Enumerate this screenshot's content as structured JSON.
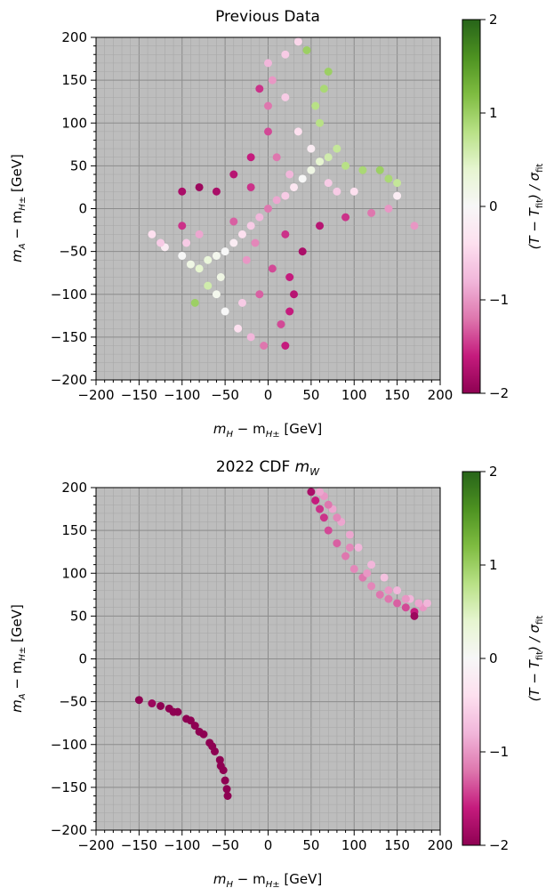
{
  "colors": {
    "plot_background": "#bdbdbd",
    "grid_major": "#8c8c8c",
    "grid_minor": "#a8a8a8",
    "cmap_stops": [
      "#8e0152",
      "#c51b7d",
      "#de77ae",
      "#f1b6da",
      "#fde0ef",
      "#f7f7f7",
      "#e6f5d0",
      "#b8e186",
      "#7fbc41",
      "#4d9221",
      "#276419"
    ]
  },
  "colorbar": {
    "label_main": "(T − T",
    "label_sub": "fit",
    "label_tail": ") / σ",
    "label_sub2": "fit",
    "range": [
      -2,
      2
    ],
    "ticks": [
      -2,
      -1,
      0,
      1,
      2
    ],
    "tick_labels": [
      "−2",
      "−1",
      "0",
      "1",
      "2"
    ]
  },
  "chart_data": [
    {
      "type": "scatter",
      "title": "Previous Data",
      "title_parts": {
        "main": "Previous Data",
        "italic": "",
        "sub": ""
      },
      "xlabel": {
        "main": "m",
        "sub1": "H",
        "mid": " − m",
        "sub2": "H±",
        "tail": " [GeV]"
      },
      "ylabel": {
        "main": "m",
        "sub1": "A",
        "mid": " − m",
        "sub2": "H±",
        "tail": " [GeV]"
      },
      "xlim": [
        -200,
        200
      ],
      "ylim": [
        -200,
        200
      ],
      "xticks": [
        -200,
        -150,
        -100,
        -50,
        0,
        50,
        100,
        150,
        200
      ],
      "yticks": [
        -200,
        -150,
        -100,
        -50,
        0,
        50,
        100,
        150,
        200
      ],
      "xtick_labels": [
        "−200",
        "−150",
        "−100",
        "−50",
        "0",
        "50",
        "100",
        "150",
        "200"
      ],
      "ytick_labels": [
        "−200",
        "−150",
        "−100",
        "−50",
        "0",
        "50",
        "100",
        "150",
        "200"
      ],
      "grid": true,
      "colorbar_quantity": "(T − T_fit) / σ_fit",
      "description_shape": "cross/star region centered near origin",
      "points": [
        [
          0,
          0,
          -1.2
        ],
        [
          10,
          10,
          -0.9
        ],
        [
          20,
          15,
          -0.6
        ],
        [
          30,
          25,
          -0.3
        ],
        [
          40,
          35,
          0.0
        ],
        [
          50,
          45,
          0.2
        ],
        [
          60,
          55,
          0.4
        ],
        [
          70,
          60,
          0.6
        ],
        [
          80,
          70,
          0.7
        ],
        [
          60,
          100,
          0.8
        ],
        [
          55,
          120,
          0.8
        ],
        [
          65,
          140,
          0.9
        ],
        [
          70,
          160,
          1.0
        ],
        [
          45,
          185,
          1.0
        ],
        [
          90,
          50,
          0.8
        ],
        [
          110,
          45,
          0.9
        ],
        [
          130,
          45,
          1.0
        ],
        [
          140,
          35,
          0.9
        ],
        [
          150,
          30,
          0.7
        ],
        [
          -10,
          -10,
          -0.8
        ],
        [
          -20,
          -20,
          -0.6
        ],
        [
          -30,
          -30,
          -0.4
        ],
        [
          -40,
          -40,
          -0.2
        ],
        [
          -50,
          -50,
          0.0
        ],
        [
          -60,
          -55,
          0.1
        ],
        [
          -70,
          -60,
          0.3
        ],
        [
          -80,
          -70,
          0.4
        ],
        [
          -90,
          -65,
          0.2
        ],
        [
          -100,
          -55,
          0.0
        ],
        [
          -120,
          -45,
          -0.2
        ],
        [
          -135,
          -30,
          -0.4
        ],
        [
          -55,
          -80,
          0.2
        ],
        [
          -60,
          -100,
          0.1
        ],
        [
          -50,
          -120,
          0.0
        ],
        [
          -35,
          -140,
          -0.4
        ],
        [
          -20,
          -150,
          -0.8
        ],
        [
          -5,
          -160,
          -1.2
        ],
        [
          15,
          -135,
          -1.4
        ],
        [
          25,
          -120,
          -1.6
        ],
        [
          30,
          -100,
          -1.7
        ],
        [
          25,
          -80,
          -1.6
        ],
        [
          40,
          -50,
          -1.8
        ],
        [
          60,
          -20,
          -1.7
        ],
        [
          90,
          -10,
          -1.5
        ],
        [
          120,
          -5,
          -1.2
        ],
        [
          140,
          0,
          -1.0
        ],
        [
          -100,
          20,
          -1.8
        ],
        [
          -80,
          25,
          -1.9
        ],
        [
          -60,
          20,
          -1.8
        ],
        [
          -40,
          40,
          -1.7
        ],
        [
          -20,
          60,
          -1.6
        ],
        [
          0,
          90,
          -1.4
        ],
        [
          0,
          120,
          -1.2
        ],
        [
          5,
          150,
          -1.0
        ],
        [
          0,
          170,
          -0.8
        ],
        [
          20,
          180,
          -0.6
        ],
        [
          35,
          195,
          -0.5
        ],
        [
          -10,
          140,
          -1.5
        ],
        [
          10,
          60,
          -1.2
        ],
        [
          -20,
          25,
          -1.5
        ],
        [
          20,
          -30,
          -1.5
        ],
        [
          -40,
          -15,
          -1.3
        ],
        [
          100,
          20,
          -0.4
        ],
        [
          80,
          20,
          -0.6
        ],
        [
          50,
          70,
          -0.2
        ],
        [
          35,
          90,
          -0.4
        ],
        [
          20,
          130,
          -0.6
        ],
        [
          -80,
          -30,
          -0.9
        ],
        [
          -95,
          -40,
          -0.6
        ],
        [
          -25,
          -60,
          -1.0
        ],
        [
          -10,
          -100,
          -1.3
        ],
        [
          -30,
          -110,
          -0.6
        ],
        [
          -100,
          -20,
          -1.5
        ],
        [
          170,
          -20,
          -1.0
        ],
        [
          150,
          15,
          -0.2
        ],
        [
          20,
          -160,
          -1.6
        ],
        [
          -125,
          -40,
          -0.6
        ],
        [
          -85,
          -110,
          1.0
        ],
        [
          -70,
          -90,
          0.6
        ],
        [
          25,
          40,
          -0.8
        ],
        [
          70,
          30,
          -0.6
        ],
        [
          -15,
          -40,
          -1.1
        ],
        [
          5,
          -70,
          -1.4
        ]
      ]
    },
    {
      "type": "scatter",
      "title": "2022 CDF m_W",
      "title_parts": {
        "main": "2022 CDF ",
        "italic": "m",
        "sub": "W"
      },
      "xlabel": {
        "main": "m",
        "sub1": "H",
        "mid": " − m",
        "sub2": "H±",
        "tail": " [GeV]"
      },
      "ylabel": {
        "main": "m",
        "sub1": "A",
        "mid": " − m",
        "sub2": "H±",
        "tail": " [GeV]"
      },
      "xlim": [
        -200,
        200
      ],
      "ylim": [
        -200,
        200
      ],
      "xticks": [
        -200,
        -150,
        -100,
        -50,
        0,
        50,
        100,
        150,
        200
      ],
      "yticks": [
        -200,
        -150,
        -100,
        -50,
        0,
        50,
        100,
        150,
        200
      ],
      "xtick_labels": [
        "−200",
        "−150",
        "−100",
        "−50",
        "0",
        "50",
        "100",
        "150",
        "200"
      ],
      "ytick_labels": [
        "−200",
        "−150",
        "−100",
        "−50",
        "0",
        "50",
        "100",
        "150",
        "200"
      ],
      "grid": true,
      "colorbar_quantity": "(T − T_fit) / σ_fit",
      "points": [
        [
          50,
          195,
          -1.8
        ],
        [
          55,
          185,
          -1.6
        ],
        [
          60,
          175,
          -1.5
        ],
        [
          65,
          165,
          -1.5
        ],
        [
          70,
          150,
          -1.4
        ],
        [
          80,
          135,
          -1.3
        ],
        [
          90,
          120,
          -1.2
        ],
        [
          100,
          105,
          -1.1
        ],
        [
          110,
          95,
          -1.2
        ],
        [
          120,
          85,
          -1.1
        ],
        [
          130,
          75,
          -1.2
        ],
        [
          140,
          70,
          -1.2
        ],
        [
          150,
          65,
          -1.3
        ],
        [
          160,
          60,
          -1.4
        ],
        [
          170,
          55,
          -1.6
        ],
        [
          180,
          60,
          -1.0
        ],
        [
          65,
          190,
          -1.0
        ],
        [
          75,
          175,
          -0.9
        ],
        [
          85,
          160,
          -0.9
        ],
        [
          95,
          145,
          -0.9
        ],
        [
          105,
          130,
          -0.8
        ],
        [
          120,
          110,
          -0.8
        ],
        [
          135,
          95,
          -0.7
        ],
        [
          150,
          80,
          -0.8
        ],
        [
          165,
          70,
          -0.8
        ],
        [
          175,
          65,
          -0.9
        ],
        [
          60,
          195,
          -0.9
        ],
        [
          70,
          180,
          -1.2
        ],
        [
          80,
          165,
          -1.1
        ],
        [
          95,
          130,
          -1.1
        ],
        [
          115,
          100,
          -1.0
        ],
        [
          140,
          80,
          -1.0
        ],
        [
          160,
          70,
          -1.0
        ],
        [
          170,
          50,
          -1.9
        ],
        [
          185,
          65,
          -0.8
        ],
        [
          -150,
          -48,
          -2.0
        ],
        [
          -135,
          -52,
          -1.9
        ],
        [
          -125,
          -55,
          -2.0
        ],
        [
          -115,
          -58,
          -2.0
        ],
        [
          -105,
          -62,
          -2.0
        ],
        [
          -95,
          -70,
          -2.0
        ],
        [
          -85,
          -78,
          -2.0
        ],
        [
          -75,
          -88,
          -2.0
        ],
        [
          -68,
          -98,
          -2.0
        ],
        [
          -62,
          -108,
          -2.0
        ],
        [
          -56,
          -118,
          -2.0
        ],
        [
          -52,
          -130,
          -2.0
        ],
        [
          -50,
          -142,
          -2.0
        ],
        [
          -48,
          -152,
          -2.0
        ],
        [
          -47,
          -160,
          -2.0
        ],
        [
          -110,
          -62,
          -2.0
        ],
        [
          -90,
          -72,
          -2.0
        ],
        [
          -80,
          -85,
          -2.0
        ],
        [
          -65,
          -102,
          -2.0
        ],
        [
          -55,
          -125,
          -2.0
        ]
      ]
    }
  ]
}
